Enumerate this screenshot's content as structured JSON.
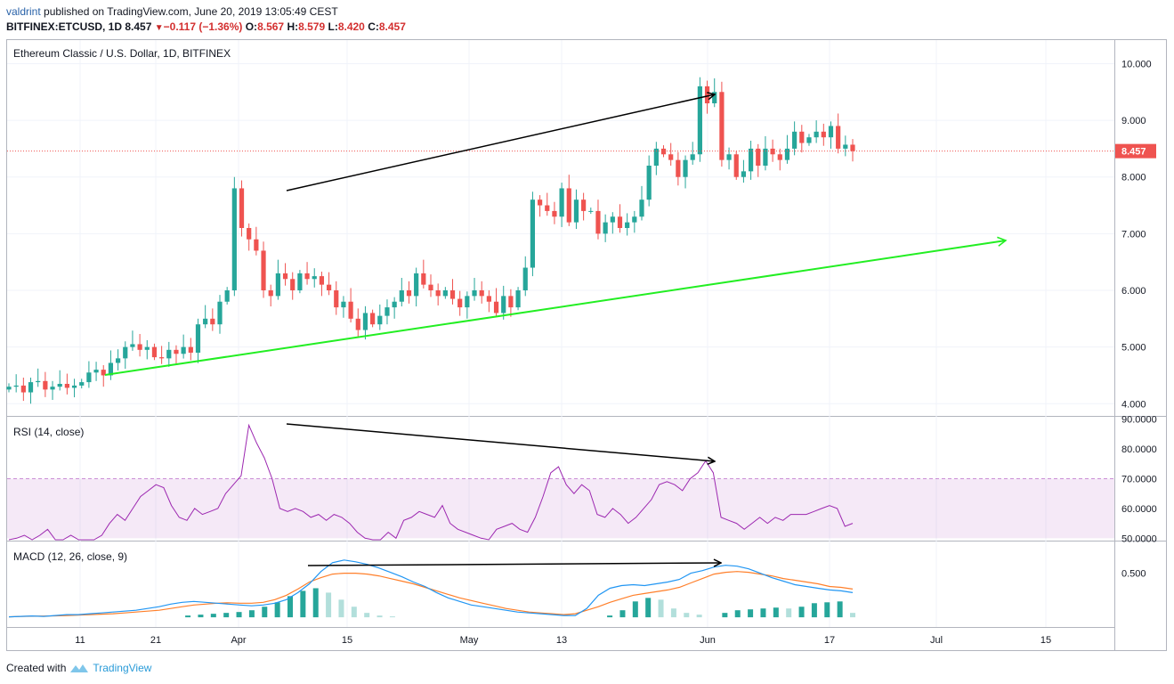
{
  "header": {
    "user": "valdrint",
    "published": " published on TradingView.com, June 20, 2019 13:05:49 CEST",
    "symbol": "BITFINEX:ETCUSD, 1D",
    "last": "8.457",
    "change": "−0.117 (−1.36%)",
    "o_label": "O:",
    "o": "8.567",
    "h_label": "H:",
    "h": "8.579",
    "l_label": "L:",
    "l": "8.420",
    "c_label": "C:",
    "c": "8.457"
  },
  "footer": {
    "created_with": "Created with",
    "brand": "TradingView"
  },
  "colors": {
    "up": "#26a69a",
    "down": "#ef5350",
    "rsi": "#9c27b0",
    "macd": "#2196f3",
    "signal": "#ff7f2a",
    "trend": "#22ee22"
  },
  "chart_data": {
    "type": "candlestick",
    "price_pane": {
      "title": "Ethereum Classic / U.S. Dollar, 1D, BITFINEX",
      "last_price": "8.457",
      "y_ticks": [
        "10.000",
        "9.000",
        "8.000",
        "7.000",
        "6.000",
        "5.000",
        "4.000"
      ],
      "ylim": [
        3.8,
        10.4
      ],
      "close": [
        4.3,
        4.32,
        4.2,
        4.38,
        4.4,
        4.25,
        4.3,
        4.35,
        4.28,
        4.32,
        4.38,
        4.55,
        4.6,
        4.5,
        4.72,
        4.8,
        5.0,
        5.05,
        4.95,
        5.0,
        4.82,
        4.8,
        4.95,
        4.88,
        5.0,
        4.9,
        5.4,
        5.5,
        5.4,
        5.8,
        6.0,
        7.8,
        7.1,
        6.9,
        6.7,
        6.0,
        5.9,
        6.3,
        6.2,
        6.0,
        6.3,
        6.2,
        6.25,
        6.1,
        6.0,
        5.7,
        5.8,
        5.5,
        5.3,
        5.6,
        5.4,
        5.55,
        5.7,
        5.8,
        6.0,
        5.9,
        6.3,
        6.1,
        6.0,
        5.9,
        6.0,
        5.85,
        5.7,
        5.9,
        6.0,
        5.9,
        5.8,
        5.6,
        5.9,
        5.7,
        6.0,
        6.4,
        7.6,
        7.5,
        7.4,
        7.3,
        7.8,
        7.2,
        7.6,
        7.4,
        7.4,
        7.0,
        7.2,
        7.3,
        7.1,
        7.2,
        7.3,
        7.6,
        8.2,
        8.5,
        8.4,
        8.3,
        8.0,
        8.3,
        8.4,
        9.6,
        9.3,
        9.5,
        8.3,
        8.4,
        8.0,
        8.1,
        8.5,
        8.2,
        8.5,
        8.4,
        8.3,
        8.5,
        8.8,
        8.6,
        8.7,
        8.8,
        8.7,
        8.9,
        8.5,
        8.57,
        8.457
      ]
    },
    "rsi_pane": {
      "title": "RSI (14, close)",
      "y_ticks": [
        "90.0000",
        "80.0000",
        "70.0000",
        "60.0000",
        "50.0000"
      ],
      "ylim": [
        49.5,
        90.5
      ],
      "band": [
        50,
        70
      ],
      "values": [
        48,
        50,
        51,
        48,
        51,
        53,
        47,
        46,
        51,
        48,
        46,
        48,
        51,
        55,
        58,
        56,
        60,
        64,
        66,
        68,
        67,
        61,
        57,
        56,
        60,
        58,
        59,
        60,
        65,
        68,
        71,
        88,
        82,
        77,
        70,
        60,
        59,
        60,
        59,
        57,
        58,
        56,
        58,
        57,
        55,
        52,
        50,
        48,
        47,
        52,
        50,
        56,
        57,
        59,
        58,
        57,
        61,
        55,
        53,
        52,
        51,
        50,
        49,
        53,
        54,
        55,
        53,
        52,
        57,
        64,
        72,
        74,
        68,
        65,
        68,
        66,
        58,
        57,
        60,
        58,
        55,
        57,
        60,
        63,
        68,
        69,
        68,
        66,
        70,
        72,
        76,
        72,
        57,
        56,
        55,
        53,
        55,
        57,
        55,
        57,
        56,
        58,
        58,
        58,
        59,
        60,
        61,
        60,
        54,
        55
      ]
    },
    "macd_pane": {
      "title": "MACD (12, 26, close, 9)",
      "y_ticks": [
        "0.500"
      ],
      "ylim": [
        -0.1,
        0.85
      ],
      "macd": [
        0.005,
        0.01,
        0.015,
        0.01,
        0.02,
        0.03,
        0.03,
        0.04,
        0.05,
        0.06,
        0.07,
        0.08,
        0.1,
        0.12,
        0.15,
        0.17,
        0.18,
        0.17,
        0.16,
        0.15,
        0.14,
        0.13,
        0.14,
        0.16,
        0.2,
        0.28,
        0.38,
        0.52,
        0.62,
        0.65,
        0.63,
        0.6,
        0.56,
        0.51,
        0.46,
        0.4,
        0.35,
        0.28,
        0.22,
        0.18,
        0.14,
        0.12,
        0.1,
        0.08,
        0.06,
        0.05,
        0.04,
        0.03,
        0.02,
        0.02,
        0.1,
        0.25,
        0.33,
        0.36,
        0.37,
        0.36,
        0.38,
        0.4,
        0.43,
        0.5,
        0.53,
        0.57,
        0.59,
        0.58,
        0.55,
        0.5,
        0.45,
        0.41,
        0.37,
        0.35,
        0.33,
        0.31,
        0.3,
        0.28
      ],
      "signal": [
        0.005,
        0.01,
        0.012,
        0.014,
        0.016,
        0.02,
        0.025,
        0.03,
        0.035,
        0.04,
        0.05,
        0.06,
        0.07,
        0.08,
        0.1,
        0.12,
        0.14,
        0.15,
        0.16,
        0.165,
        0.16,
        0.16,
        0.17,
        0.2,
        0.25,
        0.32,
        0.4,
        0.45,
        0.49,
        0.5,
        0.5,
        0.49,
        0.47,
        0.44,
        0.41,
        0.38,
        0.34,
        0.3,
        0.26,
        0.22,
        0.19,
        0.16,
        0.13,
        0.1,
        0.08,
        0.06,
        0.05,
        0.04,
        0.03,
        0.04,
        0.08,
        0.12,
        0.17,
        0.21,
        0.25,
        0.27,
        0.29,
        0.31,
        0.34,
        0.39,
        0.44,
        0.49,
        0.51,
        0.52,
        0.51,
        0.49,
        0.47,
        0.44,
        0.42,
        0.4,
        0.38,
        0.35,
        0.34,
        0.32
      ],
      "histogram": [
        0,
        0,
        0,
        0,
        0,
        0,
        0,
        0,
        0,
        0,
        0,
        0,
        0,
        0,
        0.02,
        0.03,
        0.04,
        0.05,
        0.06,
        0.08,
        0.12,
        0.17,
        0.24,
        0.3,
        0.33,
        0.28,
        0.2,
        0.12,
        0.05,
        0.02,
        0.01,
        0,
        0,
        0,
        0,
        0,
        0,
        0,
        0,
        0,
        0,
        0,
        0,
        0,
        0,
        0,
        0,
        0.02,
        0.08,
        0.18,
        0.22,
        0.2,
        0.1,
        0.05,
        0.03,
        0,
        0.05,
        0.08,
        0.09,
        0.1,
        0.11,
        0.1,
        0.12,
        0.16,
        0.17,
        0.18,
        0.05
      ]
    },
    "x_ticks": [
      "11",
      "21",
      "Apr",
      "15",
      "May",
      "13",
      "Jun",
      "17",
      "Jul",
      "15"
    ]
  }
}
